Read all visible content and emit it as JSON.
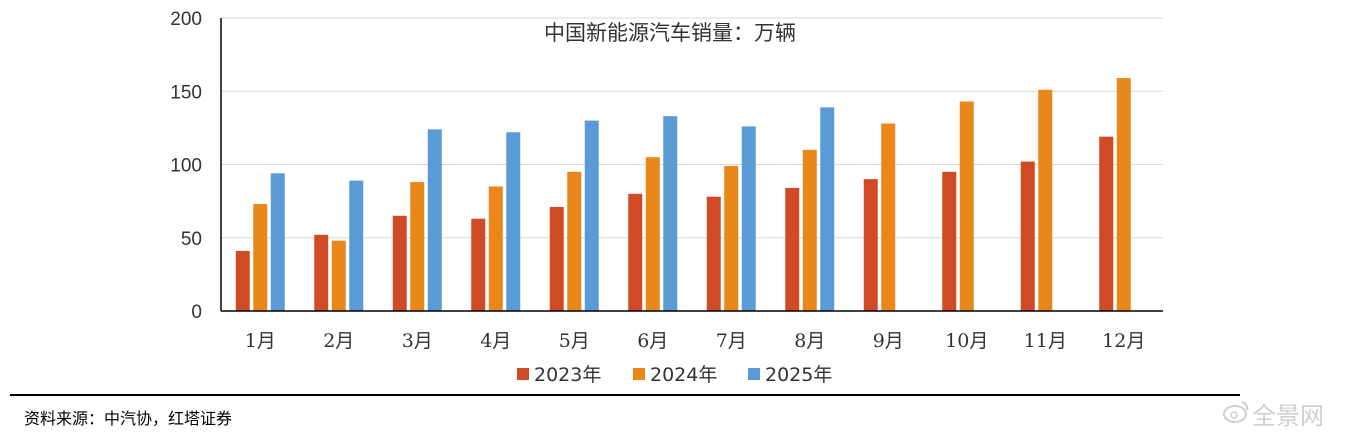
{
  "chart_data": {
    "type": "bar",
    "title": "中国新能源汽车销量：万辆",
    "categories": [
      "1月",
      "2月",
      "3月",
      "4月",
      "5月",
      "6月",
      "7月",
      "8月",
      "9月",
      "10月",
      "11月",
      "12月"
    ],
    "series": [
      {
        "name": "2023年",
        "color": "#d04a26",
        "values": [
          41,
          52,
          65,
          63,
          71,
          80,
          78,
          84,
          90,
          95,
          102,
          119
        ]
      },
      {
        "name": "2024年",
        "color": "#e9871a",
        "values": [
          73,
          48,
          88,
          85,
          95,
          105,
          99,
          110,
          128,
          143,
          151,
          159
        ]
      },
      {
        "name": "2025年",
        "color": "#5b9bd5",
        "values": [
          94,
          89,
          124,
          122,
          130,
          133,
          126,
          139,
          null,
          null,
          null,
          null
        ]
      }
    ],
    "ylim": [
      0,
      200
    ],
    "yticks": [
      0,
      50,
      100,
      150,
      200
    ],
    "grid": true,
    "legend": "bottom"
  },
  "source": "资料来源：中汽协，红塔证券",
  "watermark": "全景网"
}
